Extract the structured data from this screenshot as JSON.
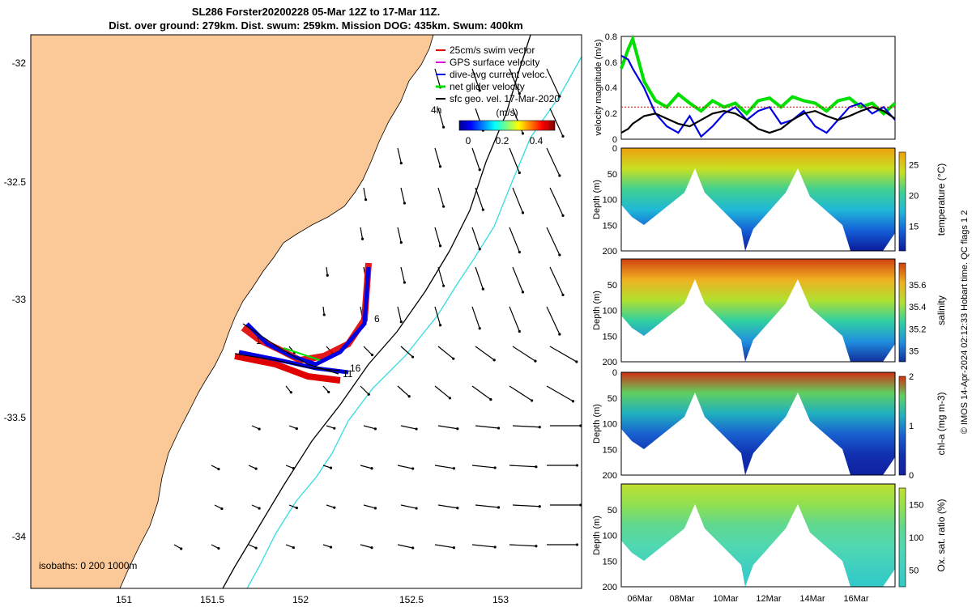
{
  "title": {
    "line1": "SL286 Forster20200228 05-Mar 12Z to 17-Mar 11Z.",
    "line2": "Dist. over ground: 279km. Dist. swum: 259km. Mission DOG: 435km. Swum: 400km"
  },
  "map": {
    "lat_ticks": [
      "-32",
      "-32.5",
      "-33",
      "-33.5",
      "-34"
    ],
    "lon_ticks": [
      "151",
      "151.5",
      "152",
      "152.5",
      "153"
    ],
    "legend": [
      {
        "label": "25cm/s swim vector",
        "color": "#e00000"
      },
      {
        "label": "GPS surface velocity",
        "color": "#e000e0"
      },
      {
        "label": "dive-avg current veloc.",
        "color": "#0000e0"
      },
      {
        "label": "net glider velocity",
        "color": "#00e000"
      },
      {
        "label": "sfc geo. vel. 17-Mar-2020",
        "color": "#000000"
      }
    ],
    "legend_note": "4h",
    "colorbar": {
      "unit": "(m/s)",
      "ticks": [
        "0",
        "0.2",
        "0.4"
      ]
    },
    "isobaths_label": "isobaths: 0   200  1000m",
    "track_labels": [
      "6",
      "16",
      "11",
      "1"
    ],
    "colors": {
      "land": "#fbc898",
      "isobath_200": "#000000",
      "isobath_1000": "#33dddd"
    }
  },
  "chart_data": [
    {
      "type": "line",
      "ylabel": "velocity magnitude (m/s)",
      "ylim": [
        0,
        0.8
      ],
      "yticks": [
        "0",
        "0.2",
        "0.4",
        "0.6",
        "0.8"
      ],
      "x": [
        0,
        0.3,
        0.5,
        1,
        1.5,
        2,
        2.5,
        3,
        3.5,
        4,
        4.5,
        5,
        5.5,
        6,
        6.5,
        7,
        7.5,
        8,
        8.5,
        9,
        9.5,
        10,
        10.5,
        11,
        11.5,
        12
      ],
      "series": [
        {
          "color": "#00e000",
          "values": [
            0.55,
            0.7,
            0.78,
            0.45,
            0.3,
            0.25,
            0.35,
            0.28,
            0.22,
            0.3,
            0.25,
            0.28,
            0.2,
            0.3,
            0.32,
            0.25,
            0.33,
            0.3,
            0.28,
            0.22,
            0.3,
            0.32,
            0.25,
            0.28,
            0.2,
            0.28
          ]
        },
        {
          "color": "#0000e0",
          "values": [
            0.65,
            0.62,
            0.55,
            0.4,
            0.2,
            0.1,
            0.05,
            0.18,
            0.02,
            0.1,
            0.2,
            0.25,
            0.15,
            0.22,
            0.25,
            0.12,
            0.15,
            0.22,
            0.1,
            0.05,
            0.15,
            0.25,
            0.28,
            0.2,
            0.25,
            0.15
          ]
        },
        {
          "color": "#000000",
          "values": [
            0.05,
            0.08,
            0.12,
            0.18,
            0.2,
            0.16,
            0.12,
            0.1,
            0.15,
            0.2,
            0.22,
            0.2,
            0.15,
            0.08,
            0.05,
            0.08,
            0.15,
            0.2,
            0.22,
            0.18,
            0.15,
            0.18,
            0.22,
            0.25,
            0.22,
            0.16
          ]
        },
        {
          "color": "#e00000",
          "values": [
            0.25,
            0.25,
            0.25,
            0.25,
            0.25,
            0.25,
            0.25,
            0.25,
            0.25,
            0.25,
            0.25,
            0.25,
            0.25,
            0.25,
            0.25,
            0.25,
            0.25,
            0.25,
            0.25,
            0.25,
            0.25,
            0.25,
            0.25,
            0.25,
            0.25,
            0.25
          ]
        }
      ]
    },
    {
      "type": "heatmap",
      "ylabel": "Depth (m)",
      "ylim": [
        200,
        0
      ],
      "yticks": [
        "0",
        "50",
        "100",
        "150",
        "200"
      ],
      "colorbar_label": "temperature (°C)",
      "colorbar_ticks": [
        "15",
        "20",
        "25"
      ],
      "colorbar_range": [
        11,
        27
      ]
    },
    {
      "type": "heatmap",
      "ylabel": "Depth (m)",
      "ylim": [
        200,
        0
      ],
      "yticks": [
        "50",
        "100",
        "150",
        "200"
      ],
      "colorbar_label": "salinity",
      "colorbar_ticks": [
        "35",
        "35.2",
        "35.4",
        "35.6"
      ],
      "colorbar_range": [
        34.9,
        35.8
      ]
    },
    {
      "type": "heatmap",
      "ylabel": "Depth (m)",
      "ylim": [
        200,
        0
      ],
      "yticks": [
        "0",
        "50",
        "100",
        "150",
        "200"
      ],
      "colorbar_label": "chl-a (mg m-3)",
      "colorbar_ticks": [
        "0",
        "1",
        "2"
      ],
      "colorbar_range": [
        0,
        2
      ]
    },
    {
      "type": "heatmap",
      "ylabel": "Depth (m)",
      "ylim": [
        200,
        0
      ],
      "yticks": [
        "50",
        "100",
        "150",
        "200"
      ],
      "colorbar_label": "Ox. sat. ratio (%)",
      "colorbar_ticks": [
        "50",
        "100",
        "150"
      ],
      "colorbar_range": [
        25,
        175
      ],
      "xticks": [
        "06Mar",
        "08Mar",
        "10Mar",
        "12Mar",
        "14Mar",
        "16Mar"
      ]
    }
  ],
  "side_note": "© IMOS 14-Apr-2024 02:12:33 Hobart time. QC flags 1  2"
}
